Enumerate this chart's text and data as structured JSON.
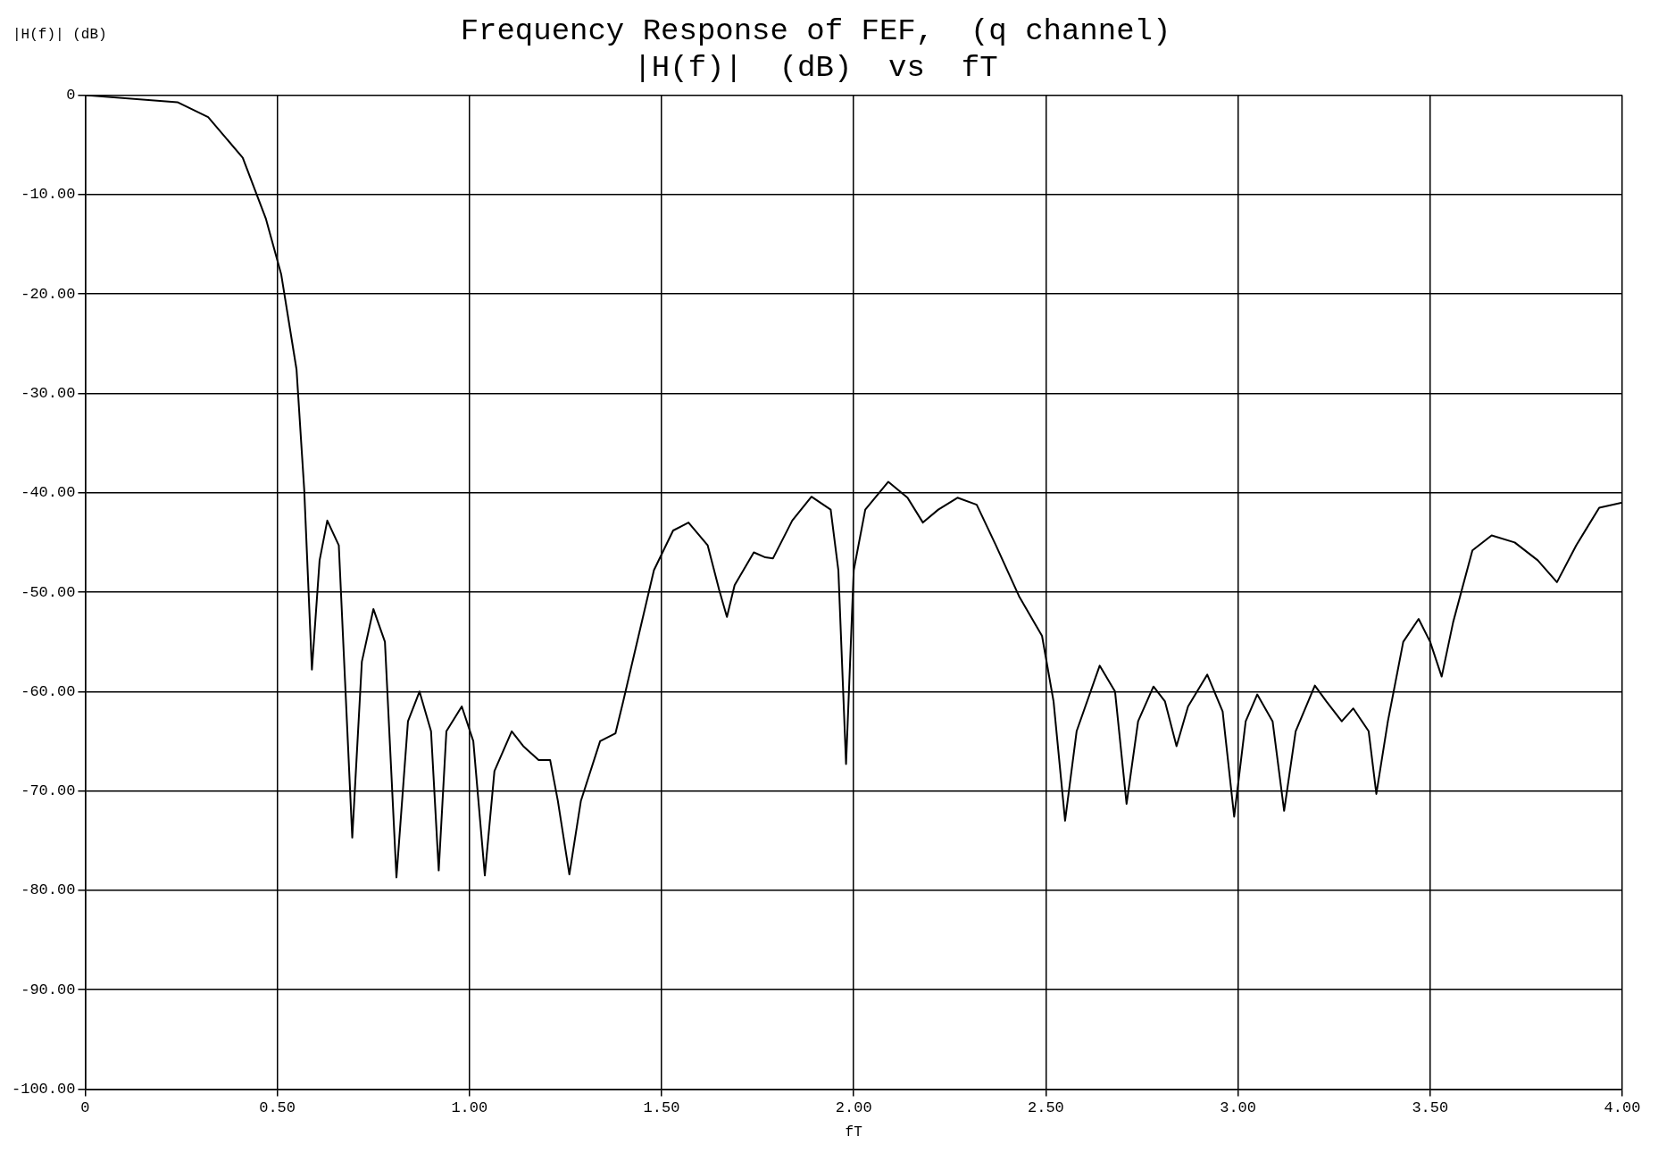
{
  "chart_data": {
    "type": "line",
    "title": "Frequency Response of FEF,  (q channel)",
    "subtitle": "|H(f)|  (dB)  vs  fT",
    "xlabel": "fT",
    "ylabel": "|H(f)|  (dB)",
    "x": [
      0,
      0.24,
      0.32,
      0.41,
      0.47,
      0.51,
      0.55,
      0.57,
      0.59,
      0.61,
      0.63,
      0.66,
      0.695,
      0.72,
      0.75,
      0.78,
      0.81,
      0.84,
      0.87,
      0.9,
      0.92,
      0.94,
      0.98,
      1.01,
      1.04,
      1.065,
      1.11,
      1.14,
      1.18,
      1.21,
      1.23,
      1.26,
      1.29,
      1.34,
      1.38,
      1.4,
      1.44,
      1.48,
      1.53,
      1.57,
      1.62,
      1.65,
      1.67,
      1.69,
      1.74,
      1.77,
      1.79,
      1.84,
      1.89,
      1.94,
      1.96,
      1.98,
      2,
      2.03,
      2.09,
      2.14,
      2.18,
      2.22,
      2.27,
      2.32,
      2.37,
      2.43,
      2.49,
      2.52,
      2.55,
      2.58,
      2.64,
      2.68,
      2.71,
      2.74,
      2.78,
      2.81,
      2.84,
      2.87,
      2.92,
      2.96,
      2.99,
      3.02,
      3.05,
      3.09,
      3.12,
      3.15,
      3.2,
      3.23,
      3.27,
      3.3,
      3.34,
      3.36,
      3.39,
      3.43,
      3.47,
      3.5,
      3.53,
      3.56,
      3.61,
      3.66,
      3.72,
      3.78,
      3.83,
      3.88,
      3.94,
      4
    ],
    "series": [
      {
        "color": "#000000",
        "values": [
          0,
          -0.7,
          -2.2,
          -6.3,
          -12.4,
          -18,
          -27.6,
          -39.7,
          -57.8,
          -46.8,
          -42.8,
          -45.3,
          -74.7,
          -57,
          -51.7,
          -55,
          -78.7,
          -63,
          -60,
          -64,
          -78,
          -64,
          -61.5,
          -65,
          -78.5,
          -68,
          -64,
          -65.5,
          -66.9,
          -66.9,
          -71,
          -78.4,
          -71,
          -65,
          -64.2,
          -61,
          -54.4,
          -47.8,
          -43.8,
          -43,
          -45.3,
          -49.8,
          -52.5,
          -49.3,
          -46,
          -46.5,
          -46.6,
          -42.8,
          -40.4,
          -41.7,
          -47.8,
          -67.3,
          -47.8,
          -41.7,
          -38.9,
          -40.5,
          -43,
          -41.7,
          -40.5,
          -41.2,
          -45.3,
          -50.4,
          -54.4,
          -61,
          -73,
          -64,
          -57.4,
          -60,
          -71.3,
          -63,
          -59.5,
          -61,
          -65.5,
          -61.5,
          -58.3,
          -62,
          -72.6,
          -63,
          -60.3,
          -63,
          -72,
          -64,
          -59.4,
          -61,
          -63,
          -61.7,
          -64,
          -70.3,
          -63,
          -55,
          -52.7,
          -55,
          -58.5,
          -53,
          -45.8,
          -44.3,
          -45,
          -46.8,
          -49,
          -45.3,
          -41.5,
          -41
        ]
      }
    ],
    "xlim": [
      0,
      4
    ],
    "ylim": [
      -100,
      0
    ],
    "xticks": [
      0,
      {
        "value": 0.5,
        "label": "0.50"
      },
      {
        "value": 1,
        "label": "1.00"
      },
      {
        "value": 1.5,
        "label": "1.50"
      },
      {
        "value": 2,
        "label": "2.00"
      },
      {
        "value": 2.5,
        "label": "2.50"
      },
      {
        "value": 3,
        "label": "3.00"
      },
      {
        "value": 3.5,
        "label": "3.50"
      },
      {
        "value": 4,
        "label": "4.00"
      }
    ],
    "yticks": [
      0,
      {
        "value": -10,
        "label": "-10.00"
      },
      {
        "value": -20,
        "label": "-20.00"
      },
      {
        "value": -30,
        "label": "-30.00"
      },
      {
        "value": -40,
        "label": "-40.00"
      },
      {
        "value": -50,
        "label": "-50.00"
      },
      {
        "value": -60,
        "label": "-60.00"
      },
      {
        "value": -70,
        "label": "-70.00"
      },
      {
        "value": -80,
        "label": "-80.00"
      },
      {
        "value": -90,
        "label": "-90.00"
      },
      {
        "value": -100,
        "label": "-100.00"
      }
    ],
    "grid": true,
    "legend": false,
    "marker": "none",
    "line_style": "solid"
  }
}
